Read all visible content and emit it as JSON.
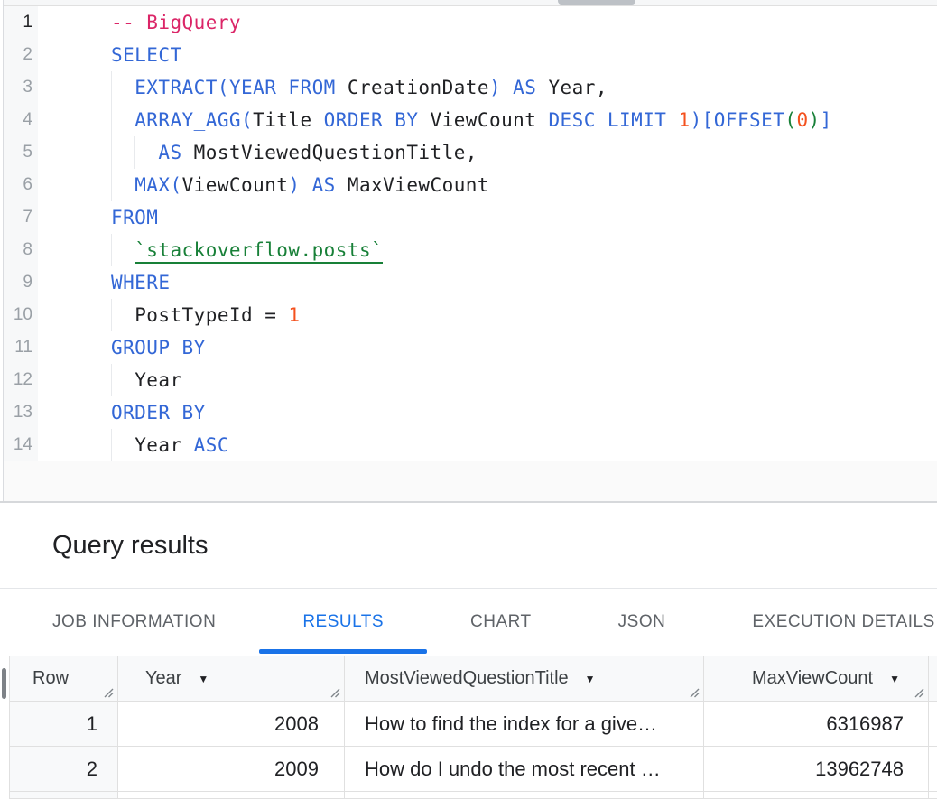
{
  "colors": {
    "kw": "#3367d6",
    "cm": "#db2567",
    "num": "#f4511e",
    "str": "#188038",
    "b1": "#3367d6",
    "b2": "#188038",
    "id": "#202124",
    "tab_active": "#1a73e8",
    "tab_inactive": "#5f6368",
    "line_number": "#9aa0a6",
    "line_number_active": "#202124"
  },
  "icons": {
    "sort_caret": "▼"
  },
  "editor": {
    "lines": [
      {
        "n": "1",
        "active": true,
        "indent": 0,
        "tokens": [
          {
            "t": "-- BigQuery",
            "c": "cm"
          }
        ]
      },
      {
        "n": "2",
        "indent": 0,
        "tokens": [
          {
            "t": "SELECT",
            "c": "kw"
          }
        ]
      },
      {
        "n": "3",
        "indent": 1,
        "tokens": [
          {
            "t": "  ",
            "c": "ws"
          },
          {
            "t": "EXTRACT",
            "c": "kw"
          },
          {
            "t": "(",
            "c": "b1"
          },
          {
            "t": "YEAR FROM",
            "c": "kw"
          },
          {
            "t": " CreationDate",
            "c": "id"
          },
          {
            "t": ")",
            "c": "b1"
          },
          {
            "t": " AS",
            "c": "kw"
          },
          {
            "t": " Year,",
            "c": "id"
          }
        ]
      },
      {
        "n": "4",
        "indent": 1,
        "tokens": [
          {
            "t": "  ",
            "c": "ws"
          },
          {
            "t": "ARRAY_AGG",
            "c": "kw"
          },
          {
            "t": "(",
            "c": "b1"
          },
          {
            "t": "Title",
            "c": "id"
          },
          {
            "t": " ORDER BY",
            "c": "kw"
          },
          {
            "t": " ViewCount",
            "c": "id"
          },
          {
            "t": " DESC LIMIT",
            "c": "kw"
          },
          {
            "t": " ",
            "c": "ws"
          },
          {
            "t": "1",
            "c": "num"
          },
          {
            "t": ")[",
            "c": "b1"
          },
          {
            "t": "OFFSET",
            "c": "kw"
          },
          {
            "t": "(",
            "c": "b2"
          },
          {
            "t": "0",
            "c": "num"
          },
          {
            "t": ")",
            "c": "b2"
          },
          {
            "t": "]",
            "c": "b1"
          }
        ]
      },
      {
        "n": "5",
        "indent": 2,
        "tokens": [
          {
            "t": "    ",
            "c": "ws"
          },
          {
            "t": "AS",
            "c": "kw"
          },
          {
            "t": " MostViewedQuestionTitle,",
            "c": "id"
          }
        ]
      },
      {
        "n": "6",
        "indent": 1,
        "tokens": [
          {
            "t": "  ",
            "c": "ws"
          },
          {
            "t": "MAX",
            "c": "kw"
          },
          {
            "t": "(",
            "c": "b1"
          },
          {
            "t": "ViewCount",
            "c": "id"
          },
          {
            "t": ")",
            "c": "b1"
          },
          {
            "t": " AS",
            "c": "kw"
          },
          {
            "t": " MaxViewCount",
            "c": "id"
          }
        ]
      },
      {
        "n": "7",
        "indent": 0,
        "tokens": [
          {
            "t": "FROM",
            "c": "kw"
          }
        ]
      },
      {
        "n": "8",
        "indent": 1,
        "tokens": [
          {
            "t": "  ",
            "c": "ws"
          },
          {
            "t": "`stackoverflow.posts`",
            "c": "tbl"
          }
        ]
      },
      {
        "n": "9",
        "indent": 0,
        "tokens": [
          {
            "t": "WHERE",
            "c": "kw"
          }
        ]
      },
      {
        "n": "10",
        "indent": 1,
        "tokens": [
          {
            "t": "  ",
            "c": "ws"
          },
          {
            "t": "PostTypeId = ",
            "c": "id"
          },
          {
            "t": "1",
            "c": "num"
          }
        ]
      },
      {
        "n": "11",
        "indent": 0,
        "tokens": [
          {
            "t": "GROUP BY",
            "c": "kw"
          }
        ]
      },
      {
        "n": "12",
        "indent": 1,
        "tokens": [
          {
            "t": "  ",
            "c": "ws"
          },
          {
            "t": "Year",
            "c": "id"
          }
        ]
      },
      {
        "n": "13",
        "indent": 0,
        "tokens": [
          {
            "t": "ORDER BY",
            "c": "kw"
          }
        ]
      },
      {
        "n": "14",
        "indent": 1,
        "tokens": [
          {
            "t": "  ",
            "c": "ws"
          },
          {
            "t": "Year",
            "c": "id"
          },
          {
            "t": " ASC",
            "c": "kw"
          }
        ]
      }
    ]
  },
  "results": {
    "title": "Query results",
    "tabs": [
      {
        "label": "JOB INFORMATION",
        "active": false
      },
      {
        "label": "RESULTS",
        "active": true
      },
      {
        "label": "CHART",
        "active": false
      },
      {
        "label": "JSON",
        "active": false
      },
      {
        "label": "EXECUTION DETAILS",
        "active": false
      }
    ],
    "table": {
      "columns": [
        {
          "label": "Row",
          "sortable": false
        },
        {
          "label": "Year",
          "sortable": true
        },
        {
          "label": "MostViewedQuestionTitle",
          "sortable": true
        },
        {
          "label": "MaxViewCount",
          "sortable": true
        }
      ],
      "rows": [
        [
          "1",
          "2008",
          "How to find the index for a give…",
          "6316987"
        ],
        [
          "2",
          "2009",
          "How do I undo the most recent …",
          "13962748"
        ]
      ],
      "partial_third_row": true
    }
  }
}
